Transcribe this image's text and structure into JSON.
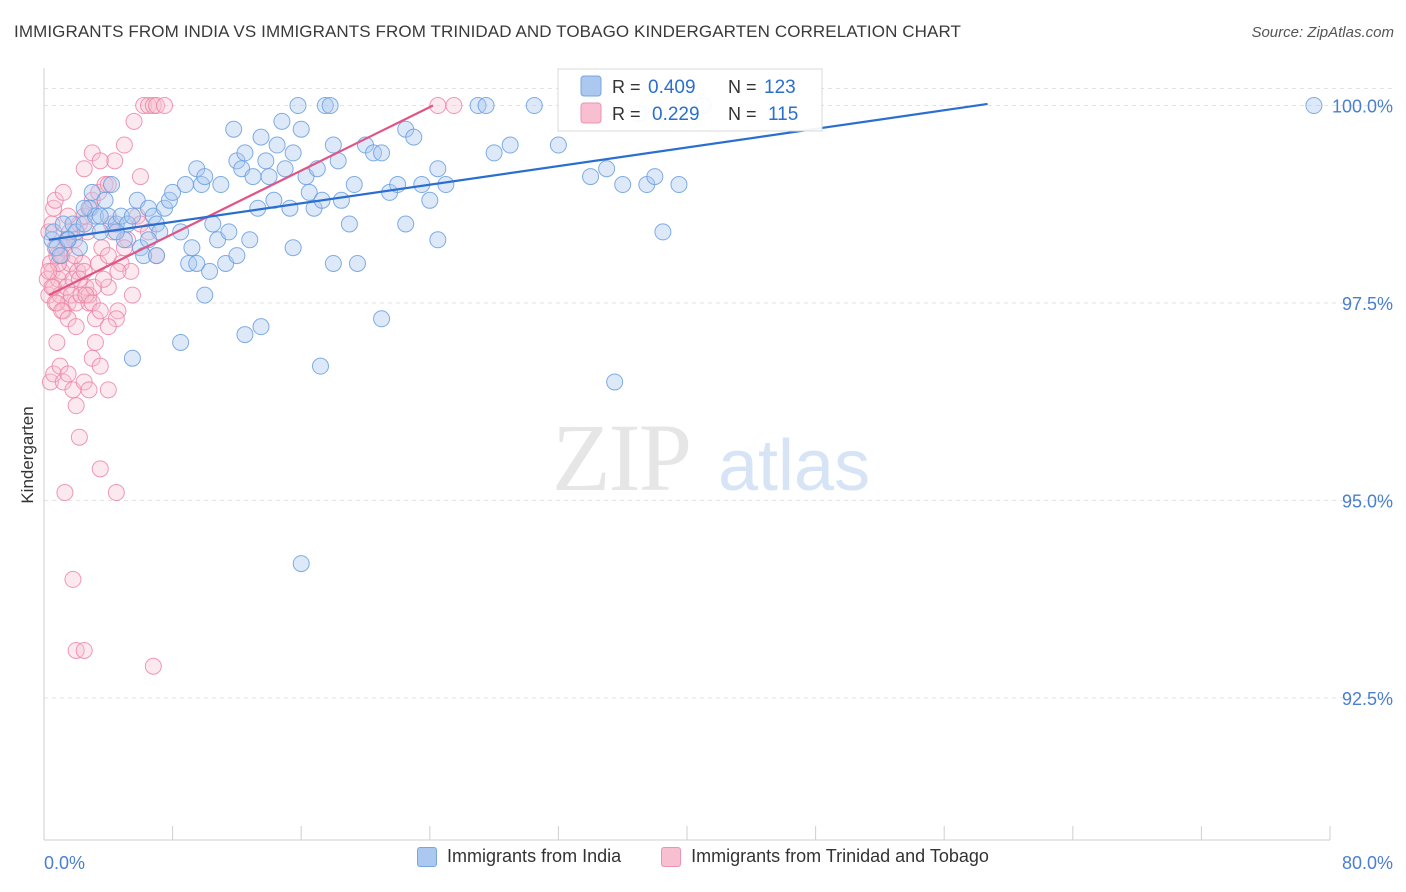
{
  "title": "IMMIGRANTS FROM INDIA VS IMMIGRANTS FROM TRINIDAD AND TOBAGO KINDERGARTEN CORRELATION CHART",
  "source": "Source: ZipAtlas.com",
  "colors": {
    "india": "#6a9fe0",
    "india_fill": "#aac8f0",
    "india_line": "#2a6fcf",
    "tt": "#ec7fa3",
    "tt_fill": "#f7bfd0",
    "tt_line": "#e05585",
    "axis_text": "#4a7fd0",
    "grid": "#e3e3e3"
  },
  "chart_data": {
    "type": "scatter",
    "title": "IMMIGRANTS FROM INDIA VS IMMIGRANTS FROM TRINIDAD AND TOBAGO KINDERGARTEN CORRELATION CHART",
    "xlabel": "",
    "ylabel": "Kindergarten",
    "xlim": [
      0,
      80
    ],
    "ylim": [
      90.7,
      100.45
    ],
    "x_tick_labels": [
      "0.0%",
      "80.0%"
    ],
    "y_ticks": [
      92.5,
      95.0,
      97.5,
      100.0
    ],
    "y_tick_labels": [
      "92.5%",
      "95.0%",
      "97.5%",
      "100.0%"
    ],
    "watermark": {
      "zip": "ZIP",
      "atlas": "atlas"
    },
    "stats": [
      {
        "r_label": "R =",
        "r": "0.409",
        "n_label": "N =",
        "n": "123"
      },
      {
        "r_label": "R =",
        "r": "0.229",
        "n_label": "N =",
        "n": "115"
      }
    ],
    "series": [
      {
        "name": "Immigrants from India",
        "trend": {
          "x": [
            0.3,
            58.7
          ],
          "y": [
            98.3,
            100.02
          ]
        },
        "points": [
          [
            0.5,
            98.3
          ],
          [
            0.6,
            98.4
          ],
          [
            0.8,
            98.2
          ],
          [
            1.0,
            98.1
          ],
          [
            1.2,
            98.5
          ],
          [
            1.5,
            98.3
          ],
          [
            1.8,
            98.5
          ],
          [
            2.0,
            98.4
          ],
          [
            2.2,
            98.2
          ],
          [
            2.5,
            98.5
          ],
          [
            2.8,
            98.7
          ],
          [
            3.0,
            98.9
          ],
          [
            3.2,
            98.6
          ],
          [
            3.5,
            98.4
          ],
          [
            3.8,
            98.8
          ],
          [
            4.0,
            98.6
          ],
          [
            4.2,
            99.0
          ],
          [
            4.5,
            98.5
          ],
          [
            4.8,
            98.6
          ],
          [
            5.0,
            98.3
          ],
          [
            5.2,
            98.5
          ],
          [
            5.5,
            98.6
          ],
          [
            5.8,
            98.8
          ],
          [
            6.0,
            98.2
          ],
          [
            6.2,
            98.1
          ],
          [
            6.5,
            98.7
          ],
          [
            6.8,
            98.6
          ],
          [
            7.0,
            98.5
          ],
          [
            7.2,
            98.4
          ],
          [
            7.5,
            98.7
          ],
          [
            7.8,
            98.8
          ],
          [
            8.0,
            98.9
          ],
          [
            8.5,
            98.4
          ],
          [
            8.8,
            99.0
          ],
          [
            9.0,
            98.0
          ],
          [
            9.2,
            98.2
          ],
          [
            9.5,
            99.2
          ],
          [
            9.8,
            99.0
          ],
          [
            10.0,
            99.1
          ],
          [
            10.3,
            97.9
          ],
          [
            10.5,
            98.5
          ],
          [
            10.8,
            98.3
          ],
          [
            11.0,
            99.0
          ],
          [
            11.3,
            98.0
          ],
          [
            11.5,
            98.4
          ],
          [
            11.8,
            99.7
          ],
          [
            12.0,
            99.3
          ],
          [
            12.3,
            99.2
          ],
          [
            12.5,
            99.4
          ],
          [
            12.8,
            98.3
          ],
          [
            13.0,
            99.1
          ],
          [
            13.3,
            98.7
          ],
          [
            13.5,
            99.6
          ],
          [
            13.8,
            99.3
          ],
          [
            14.0,
            99.1
          ],
          [
            14.3,
            98.8
          ],
          [
            14.5,
            99.5
          ],
          [
            14.8,
            99.8
          ],
          [
            15.0,
            99.2
          ],
          [
            15.3,
            98.7
          ],
          [
            15.5,
            99.4
          ],
          [
            15.8,
            100.0
          ],
          [
            16.0,
            99.7
          ],
          [
            16.3,
            99.1
          ],
          [
            16.5,
            98.9
          ],
          [
            16.8,
            98.7
          ],
          [
            17.0,
            99.2
          ],
          [
            17.3,
            98.8
          ],
          [
            17.5,
            100.0
          ],
          [
            17.8,
            100.0
          ],
          [
            18.0,
            99.5
          ],
          [
            18.3,
            99.3
          ],
          [
            18.5,
            98.8
          ],
          [
            19.0,
            98.5
          ],
          [
            19.3,
            99.0
          ],
          [
            19.5,
            98.0
          ],
          [
            20.0,
            99.5
          ],
          [
            20.5,
            99.4
          ],
          [
            21.0,
            99.4
          ],
          [
            21.5,
            98.9
          ],
          [
            22.0,
            99.0
          ],
          [
            22.5,
            99.7
          ],
          [
            23.0,
            99.6
          ],
          [
            23.5,
            99.0
          ],
          [
            24.0,
            98.8
          ],
          [
            24.5,
            99.2
          ],
          [
            25.0,
            99.0
          ],
          [
            27.0,
            100.0
          ],
          [
            28.0,
            99.4
          ],
          [
            29.0,
            99.5
          ],
          [
            30.5,
            100.0
          ],
          [
            32.0,
            99.5
          ],
          [
            34.0,
            99.1
          ],
          [
            35.0,
            99.2
          ],
          [
            36.0,
            99.0
          ],
          [
            37.5,
            99.0
          ],
          [
            38.0,
            99.1
          ],
          [
            39.5,
            99.0
          ],
          [
            5.5,
            96.8
          ],
          [
            8.5,
            97.0
          ],
          [
            10.0,
            97.6
          ],
          [
            12.5,
            97.1
          ],
          [
            13.5,
            97.2
          ],
          [
            17.2,
            96.7
          ],
          [
            21.0,
            97.3
          ],
          [
            18.0,
            98.0
          ],
          [
            22.5,
            98.5
          ],
          [
            24.5,
            98.3
          ],
          [
            15.5,
            98.2
          ],
          [
            12.0,
            98.1
          ],
          [
            9.5,
            98.0
          ],
          [
            35.5,
            96.5
          ],
          [
            16.0,
            94.2
          ],
          [
            38.5,
            98.4
          ],
          [
            7.0,
            98.1
          ],
          [
            3.5,
            98.6
          ],
          [
            2.5,
            98.7
          ],
          [
            1.5,
            98.3
          ],
          [
            4.5,
            98.4
          ],
          [
            6.5,
            98.3
          ],
          [
            37.0,
            99.9
          ],
          [
            79.0,
            100.0
          ],
          [
            34.0,
            100.0
          ],
          [
            40.0,
            100.0
          ],
          [
            41.0,
            100.0
          ],
          [
            27.5,
            100.0
          ]
        ]
      },
      {
        "name": "Immigrants from Trinidad and Tobago",
        "trend": {
          "x": [
            0.3,
            24.2
          ],
          "y": [
            97.6,
            100.0
          ]
        },
        "points": [
          [
            0.2,
            97.8
          ],
          [
            0.3,
            97.6
          ],
          [
            0.4,
            98.0
          ],
          [
            0.5,
            97.9
          ],
          [
            0.6,
            97.7
          ],
          [
            0.7,
            97.5
          ],
          [
            0.8,
            98.1
          ],
          [
            0.9,
            97.8
          ],
          [
            1.0,
            97.6
          ],
          [
            1.1,
            97.9
          ],
          [
            1.2,
            97.4
          ],
          [
            1.3,
            98.2
          ],
          [
            1.4,
            97.7
          ],
          [
            1.5,
            97.5
          ],
          [
            1.6,
            98.0
          ],
          [
            1.7,
            97.6
          ],
          [
            1.8,
            97.8
          ],
          [
            1.9,
            98.3
          ],
          [
            2.0,
            97.5
          ],
          [
            2.1,
            97.9
          ],
          [
            2.2,
            98.5
          ],
          [
            2.3,
            97.6
          ],
          [
            2.4,
            98.0
          ],
          [
            2.5,
            98.6
          ],
          [
            2.6,
            97.7
          ],
          [
            2.7,
            98.4
          ],
          [
            2.8,
            97.5
          ],
          [
            2.9,
            98.7
          ],
          [
            3.0,
            98.8
          ],
          [
            3.2,
            97.3
          ],
          [
            3.4,
            98.9
          ],
          [
            3.6,
            98.2
          ],
          [
            3.8,
            99.0
          ],
          [
            4.0,
            97.7
          ],
          [
            4.2,
            98.5
          ],
          [
            4.4,
            99.3
          ],
          [
            4.6,
            97.4
          ],
          [
            4.8,
            98.0
          ],
          [
            5.0,
            99.5
          ],
          [
            5.2,
            98.3
          ],
          [
            5.4,
            97.9
          ],
          [
            5.6,
            99.8
          ],
          [
            5.8,
            98.6
          ],
          [
            6.0,
            99.1
          ],
          [
            6.2,
            100.0
          ],
          [
            6.5,
            100.0
          ],
          [
            6.8,
            100.0
          ],
          [
            7.0,
            100.0
          ],
          [
            7.5,
            100.0
          ],
          [
            0.4,
            96.5
          ],
          [
            0.6,
            96.6
          ],
          [
            0.8,
            97.0
          ],
          [
            1.0,
            96.7
          ],
          [
            1.2,
            96.5
          ],
          [
            1.5,
            96.6
          ],
          [
            1.8,
            96.4
          ],
          [
            2.0,
            96.2
          ],
          [
            2.2,
            95.8
          ],
          [
            2.5,
            96.5
          ],
          [
            2.8,
            96.4
          ],
          [
            3.0,
            96.8
          ],
          [
            3.2,
            97.0
          ],
          [
            3.5,
            96.7
          ],
          [
            4.0,
            96.4
          ],
          [
            4.5,
            97.3
          ],
          [
            1.3,
            95.1
          ],
          [
            3.5,
            95.4
          ],
          [
            4.5,
            95.1
          ],
          [
            1.8,
            94.0
          ],
          [
            2.0,
            93.1
          ],
          [
            2.5,
            93.1
          ],
          [
            6.8,
            92.9
          ],
          [
            0.3,
            98.4
          ],
          [
            0.5,
            98.5
          ],
          [
            0.7,
            98.2
          ],
          [
            0.9,
            98.0
          ],
          [
            1.1,
            98.1
          ],
          [
            1.4,
            98.3
          ],
          [
            1.6,
            98.4
          ],
          [
            1.9,
            98.1
          ],
          [
            2.2,
            97.8
          ],
          [
            2.5,
            97.9
          ],
          [
            2.8,
            97.6
          ],
          [
            3.1,
            97.7
          ],
          [
            3.4,
            98.0
          ],
          [
            3.7,
            97.8
          ],
          [
            4.0,
            98.1
          ],
          [
            4.3,
            98.4
          ],
          [
            4.6,
            97.9
          ],
          [
            5.0,
            98.2
          ],
          [
            5.5,
            97.6
          ],
          [
            0.3,
            97.9
          ],
          [
            0.5,
            97.7
          ],
          [
            0.8,
            97.5
          ],
          [
            1.1,
            97.4
          ],
          [
            1.5,
            97.3
          ],
          [
            2.0,
            97.2
          ],
          [
            2.6,
            97.6
          ],
          [
            3.0,
            97.5
          ],
          [
            3.5,
            97.4
          ],
          [
            4.0,
            97.2
          ],
          [
            6.0,
            98.5
          ],
          [
            6.5,
            98.4
          ],
          [
            7.0,
            98.1
          ],
          [
            24.5,
            100.0
          ],
          [
            25.5,
            100.0
          ],
          [
            0.6,
            98.7
          ],
          [
            1.5,
            98.6
          ],
          [
            2.5,
            99.2
          ],
          [
            3.0,
            99.4
          ],
          [
            3.5,
            99.3
          ],
          [
            4.0,
            99.0
          ],
          [
            0.7,
            98.8
          ],
          [
            1.2,
            98.9
          ]
        ]
      }
    ]
  },
  "legend": {
    "india_label": "Immigrants from India",
    "tt_label": "Immigrants from Trinidad and Tobago"
  }
}
